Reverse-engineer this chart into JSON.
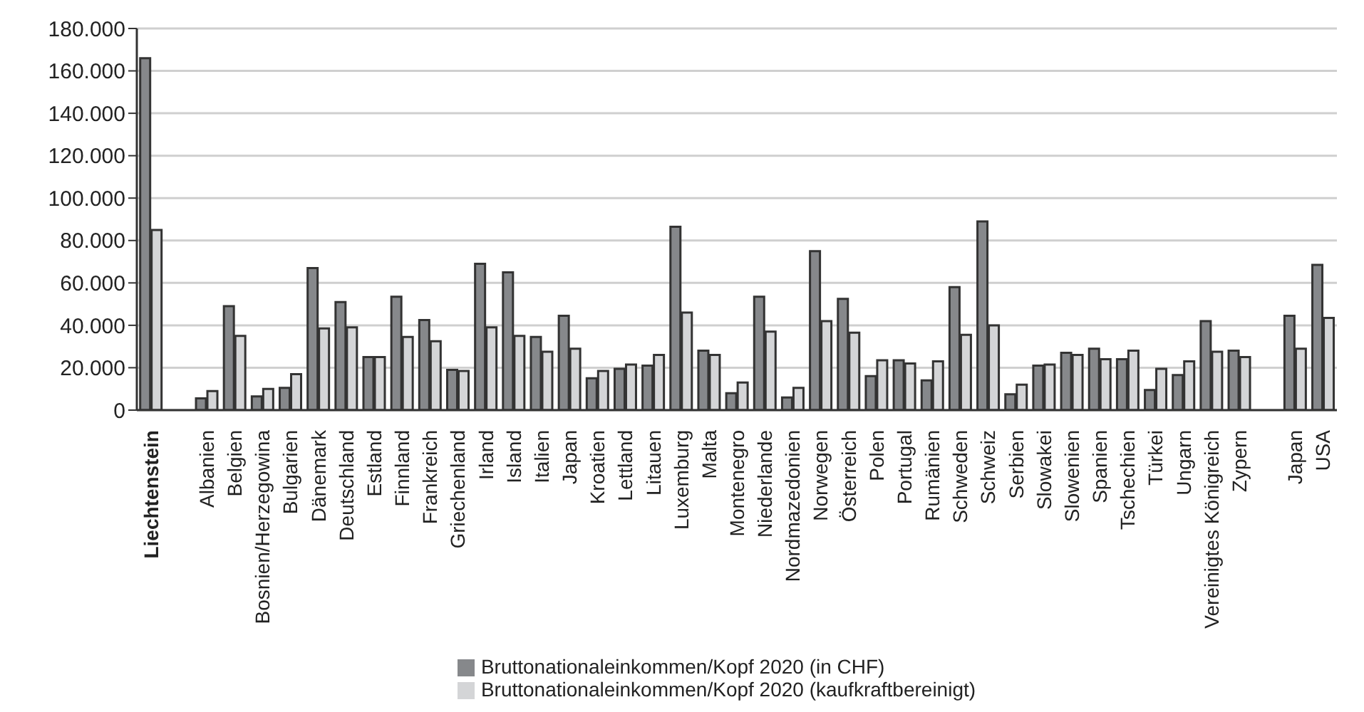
{
  "chart_data": {
    "type": "bar",
    "categories": [
      "Liechtenstein",
      null,
      "Albanien",
      "Belgien",
      "Bosnien/Herzegowina",
      "Bulgarien",
      "Dänemark",
      "Deutschland",
      "Estland",
      "Finnland",
      "Frankreich",
      "Griechenland",
      "Irland",
      "Island",
      "Italien",
      "Japan",
      "Kroatien",
      "Lettland",
      "Litauen",
      "Luxemburg",
      "Malta",
      "Montenegro",
      "Niederlande",
      "Nordmazedonien",
      "Norwegen",
      "Österreich",
      "Polen",
      "Portugal",
      "Rumänien",
      "Schweden",
      "Schweiz",
      "Serbien",
      "Slowakei",
      "Slowenien",
      "Spanien",
      "Tschechien",
      "Türkei",
      "Ungarn",
      "Vereinigtes Königreich",
      "Zypern",
      null,
      "Japan",
      "USA"
    ],
    "series": [
      {
        "name": "Bruttonationaleinkommen/Kopf 2020 (in CHF)",
        "color": "#86888b",
        "values": [
          166000,
          null,
          5500,
          49000,
          6500,
          10500,
          67000,
          51000,
          25000,
          53500,
          42500,
          19000,
          69000,
          65000,
          34500,
          44500,
          15000,
          19500,
          21000,
          86500,
          28000,
          8000,
          53500,
          6000,
          75000,
          52500,
          16000,
          23500,
          14000,
          58000,
          89000,
          7500,
          21000,
          27000,
          29000,
          24000,
          9500,
          16500,
          42000,
          28000,
          null,
          44500,
          68500
        ]
      },
      {
        "name": "Bruttonationaleinkommen/Kopf 2020 (kaufkraftbereinigt)",
        "color": "#d4d5d7",
        "values": [
          85000,
          null,
          9000,
          35000,
          10000,
          17000,
          38500,
          39000,
          25000,
          34500,
          32500,
          18500,
          39000,
          35000,
          27500,
          29000,
          18500,
          21500,
          26000,
          46000,
          26000,
          13000,
          37000,
          10500,
          42000,
          36500,
          23500,
          22000,
          23000,
          35500,
          40000,
          12000,
          21500,
          26000,
          24000,
          28000,
          19500,
          23000,
          27500,
          25000,
          null,
          29000,
          43500
        ]
      }
    ],
    "ylim": [
      0,
      180000
    ],
    "yticks": [
      {
        "value": 0,
        "label": "0"
      },
      {
        "value": 20000,
        "label": "20.000"
      },
      {
        "value": 40000,
        "label": "40.000"
      },
      {
        "value": 60000,
        "label": "60.000"
      },
      {
        "value": 80000,
        "label": "80.000"
      },
      {
        "value": 100000,
        "label": "100.000"
      },
      {
        "value": 120000,
        "label": "120.000"
      },
      {
        "value": 140000,
        "label": "140.000"
      },
      {
        "value": 160000,
        "label": "160.000"
      },
      {
        "value": 180000,
        "label": "180.000"
      }
    ],
    "grid": "y",
    "legend": "bottom"
  }
}
